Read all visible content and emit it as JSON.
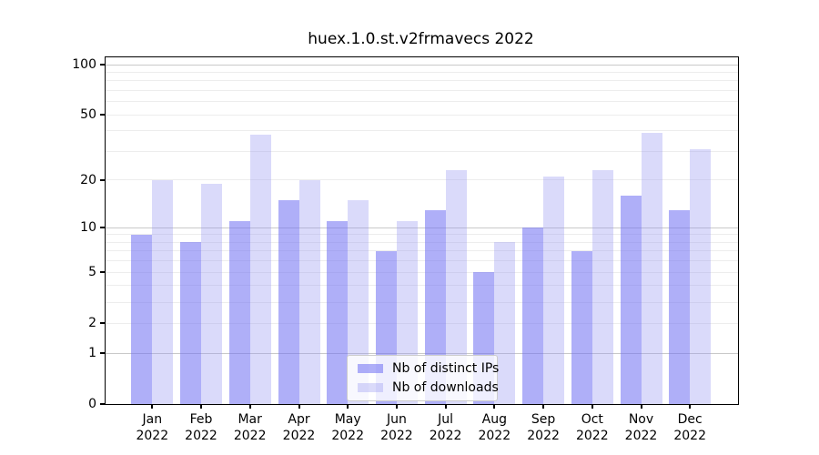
{
  "chart_data": {
    "type": "bar",
    "title": "huex.1.0.st.v2frmavecs 2022",
    "categories": [
      "Jan",
      "Feb",
      "Mar",
      "Apr",
      "May",
      "Jun",
      "Jul",
      "Aug",
      "Sep",
      "Oct",
      "Nov",
      "Dec"
    ],
    "x_tick_year_line": "2022",
    "series": [
      {
        "name": "Nb of distinct IPs",
        "color": "rgba(110,110,242,0.55)",
        "values": [
          9,
          8,
          11,
          15,
          11,
          7,
          13,
          5,
          10,
          7,
          16,
          13
        ]
      },
      {
        "name": "Nb of downloads",
        "color": "rgba(150,150,242,0.35)",
        "values": [
          20,
          19,
          38,
          20,
          15,
          11,
          23,
          8,
          21,
          23,
          39,
          31
        ]
      }
    ],
    "y_ticks": [
      0,
      1,
      2,
      5,
      10,
      20,
      50,
      100
    ],
    "y_scale": "log1p",
    "ylim": [
      0,
      110
    ],
    "grid": "on",
    "legend_position": "lower center",
    "colors": {
      "major_grid": "#c9c9c9",
      "minor_grid": "#ededed",
      "axis": "#000000",
      "ips_bar_rendered": "#abaaf8",
      "downloads_bar_rendered": "#dadaf9"
    }
  }
}
